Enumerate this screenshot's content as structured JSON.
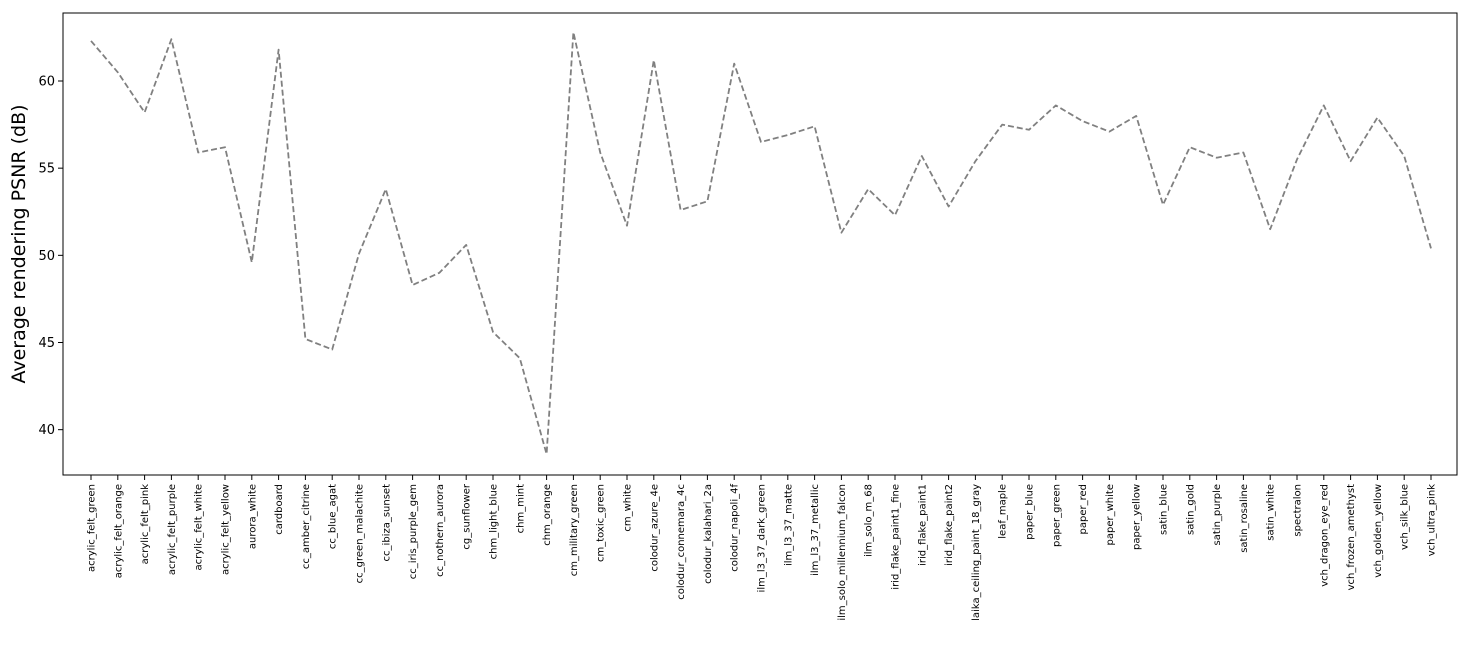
{
  "chart_data": {
    "type": "line",
    "title": "",
    "xlabel": "",
    "ylabel": "Average rendering PSNR (dB)",
    "ylim": [
      37.4,
      63.9
    ],
    "yticks": [
      40,
      45,
      50,
      55,
      60
    ],
    "grid": false,
    "line_color": "#808080",
    "line_style": "dashed",
    "categories": [
      "acrylic_felt_green",
      "acrylic_felt_orange",
      "acrylic_felt_pink",
      "acrylic_felt_purple",
      "acrylic_felt_white",
      "acrylic_felt_yellow",
      "aurora_white",
      "cardboard",
      "cc_amber_citrine",
      "cc_blue_agat",
      "cc_green_malachite",
      "cc_ibiza_sunset",
      "cc_iris_purple_gem",
      "cc_nothern_aurora",
      "cg_sunflower",
      "chm_light_blue",
      "chm_mint",
      "chm_orange",
      "cm_military_green",
      "cm_toxic_green",
      "cm_white",
      "colodur_azure_4e",
      "colodur_connemara_4c",
      "colodur_kalahari_2a",
      "colodur_napoli_4f",
      "ilm_l3_37_dark_green",
      "ilm_l3_37_matte",
      "ilm_l3_37_metallic",
      "ilm_solo_millennium_falcon",
      "ilm_solo_m_68",
      "irid_flake_paint1_fine",
      "irid_flake_paint1",
      "irid_flake_paint2",
      "laika_ceiling_paint_18_gray",
      "leaf_maple",
      "paper_blue",
      "paper_green",
      "paper_red",
      "paper_white",
      "paper_yellow",
      "satin_blue",
      "satin_gold",
      "satin_purple",
      "satin_rosaline",
      "satin_white",
      "spectralon",
      "vch_dragon_eye_red",
      "vch_frozen_amethyst",
      "vch_golden_yellow",
      "vch_silk_blue",
      "vch_ultra_pink"
    ],
    "series": [
      {
        "values": [
          62.3,
          60.5,
          58.2,
          62.4,
          55.9,
          56.2,
          49.6,
          61.8,
          45.2,
          44.6,
          50.1,
          53.8,
          48.3,
          49.0,
          50.6,
          45.6,
          44.1,
          38.6,
          62.8,
          55.9,
          51.7,
          61.2,
          52.6,
          53.1,
          61.0,
          56.5,
          56.9,
          57.4,
          51.3,
          53.8,
          52.3,
          55.7,
          52.8,
          55.4,
          57.5,
          57.2,
          58.6,
          57.7,
          57.1,
          58.0,
          52.9,
          56.2,
          55.6,
          55.9,
          51.5,
          55.5,
          58.6,
          55.4,
          57.9,
          55.7,
          50.4
        ]
      }
    ]
  }
}
